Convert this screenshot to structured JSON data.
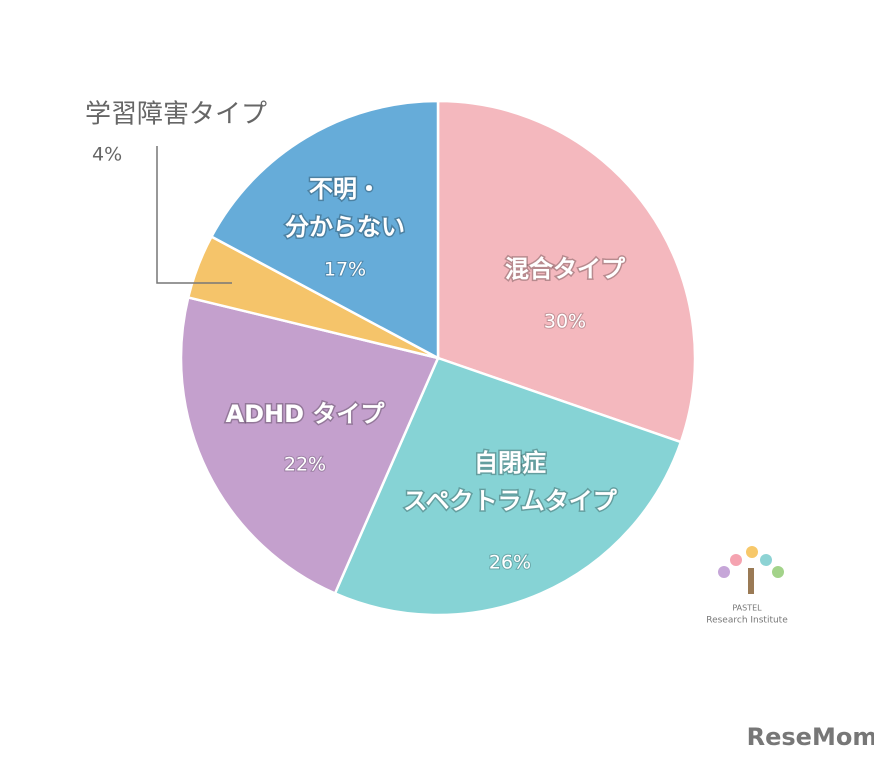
{
  "chart_data": {
    "type": "pie",
    "categories": [
      "混合タイプ",
      "自閉症\nスペクトラムタイプ",
      "ADHD タイプ",
      "学習障害タイプ",
      "不明・\n分からない"
    ],
    "values": [
      30,
      26,
      22,
      4,
      17
    ],
    "value_labels": [
      "30%",
      "26%",
      "22%",
      "4%",
      "17%"
    ],
    "colors": [
      "#f4b8be",
      "#86d3d5",
      "#c4a0cd",
      "#f5c46a",
      "#66acd9"
    ],
    "annotations": [
      "PASTEL",
      "Research Institute",
      "ReseMom"
    ]
  }
}
